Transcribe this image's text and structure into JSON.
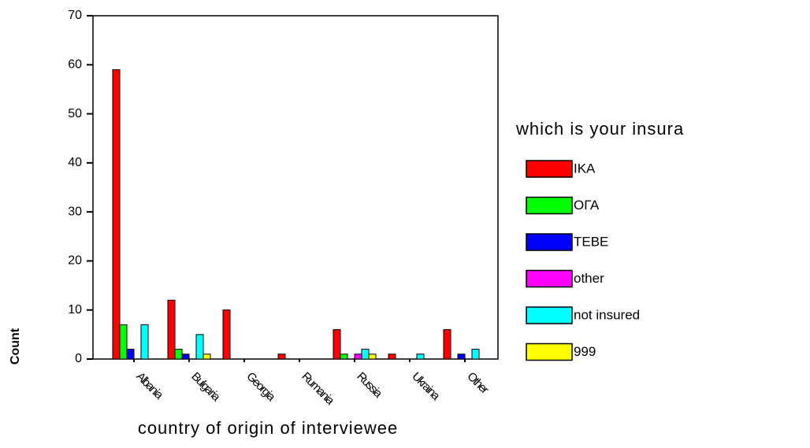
{
  "chart_data": {
    "type": "bar",
    "x_label": "country of origin of interviewee",
    "y_label": "Count",
    "legend_title": "which is your insura",
    "categories": [
      "Albania",
      "Bulgaria",
      "Georgia",
      "Rumania",
      "Russia",
      "Ukraina",
      "Other"
    ],
    "series": [
      {
        "name": "IKA",
        "color": "#ff0000",
        "values": [
          59,
          12,
          10,
          1,
          6,
          1,
          6
        ]
      },
      {
        "name": "ΟΓΑ",
        "color": "#00ff00",
        "values": [
          7,
          2,
          0,
          0,
          1,
          0,
          0
        ]
      },
      {
        "name": "TEBE",
        "color": "#0000ff",
        "values": [
          2,
          1,
          0,
          0,
          0,
          0,
          1
        ]
      },
      {
        "name": "other",
        "color": "#ff00ff",
        "values": [
          0,
          0,
          0,
          0,
          1,
          0,
          0
        ]
      },
      {
        "name": "not insured",
        "color": "#00ffff",
        "values": [
          7,
          5,
          0,
          0,
          2,
          1,
          2
        ]
      },
      {
        "name": "999",
        "color": "#ffff00",
        "values": [
          0,
          1,
          0,
          0,
          1,
          0,
          0
        ]
      }
    ],
    "ylim": [
      0,
      70
    ],
    "yticks": [
      0,
      10,
      20,
      30,
      40,
      50,
      60,
      70
    ]
  }
}
